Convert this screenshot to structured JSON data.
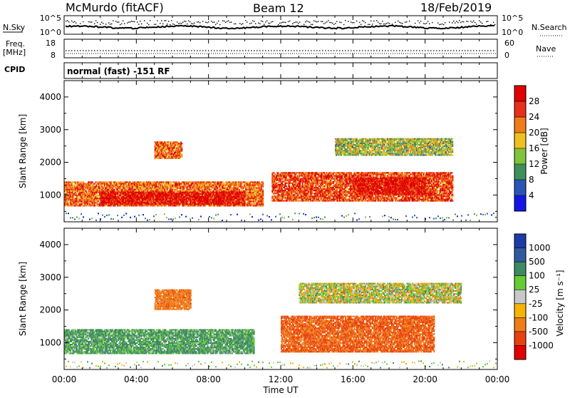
{
  "header": {
    "station": "McMurdo (fitACF)",
    "beam": "Beam 12",
    "date": "18/Feb/2019"
  },
  "noise_panel": {
    "left_label": "N.Sky",
    "right_label": "N.Search",
    "left_ticks": [
      "10^5",
      "10^0"
    ],
    "right_ticks": [
      "10^5",
      "10^0"
    ]
  },
  "freq_panel": {
    "left_label_line1": "Freq.",
    "left_label_line2": "[MHz]",
    "left_ticks": [
      "18",
      "8"
    ],
    "right_label": "Nave",
    "right_ticks": [
      "60",
      "0"
    ]
  },
  "cpid_panel": {
    "label": "CPID",
    "value": "normal (fast) -151 RF"
  },
  "axes": {
    "xlabel": "Time UT",
    "x_ticks": [
      "00:00",
      "04:00",
      "08:00",
      "12:00",
      "16:00",
      "20:00",
      "00:00"
    ],
    "ylabel": "Slant Range [km]",
    "y_ticks": [
      "1000",
      "2000",
      "3000",
      "4000"
    ]
  },
  "power_colorbar": {
    "title": "Power [dB]",
    "ticks": [
      "4",
      "8",
      "12",
      "16",
      "20",
      "24",
      "28"
    ],
    "colors": [
      "#1515e8",
      "#2a55b8",
      "#3f8f5a",
      "#7fc43c",
      "#f0c020",
      "#f07d18",
      "#e83018",
      "#e00000"
    ]
  },
  "velocity_colorbar": {
    "title": "Velocity [m s⁻¹]",
    "ticks": [
      "1000",
      "500",
      "100",
      "25",
      "-25",
      "-100",
      "-500",
      "-1000"
    ],
    "colors": [
      "#1e3ca8",
      "#2f5aa0",
      "#3e8a62",
      "#66cc33",
      "#c8c8c8",
      "#f5b400",
      "#f07d18",
      "#e84010",
      "#e00000"
    ]
  },
  "chart_data": [
    {
      "type": "heatmap",
      "title": "Power",
      "xlabel": "Time UT",
      "ylabel": "Slant Range [km]",
      "x_range": [
        "00:00",
        "24:00"
      ],
      "ylim": [
        180,
        4500
      ],
      "colorbar_label": "Power [dB]",
      "colorbar_range": [
        0,
        30
      ],
      "bands": [
        {
          "t0": 0.0,
          "t1": 11.0,
          "r0": 650,
          "r1": 1400,
          "value": 22
        },
        {
          "t0": 2.0,
          "t1": 10.0,
          "r0": 700,
          "r1": 1100,
          "value": 28
        },
        {
          "t0": 5.0,
          "t1": 6.5,
          "r0": 2100,
          "r1": 2600,
          "value": 22
        },
        {
          "t0": 11.5,
          "t1": 21.5,
          "r0": 800,
          "r1": 1700,
          "value": 24
        },
        {
          "t0": 16.0,
          "t1": 20.0,
          "r0": 1000,
          "r1": 1500,
          "value": 28
        },
        {
          "t0": 15.0,
          "t1": 21.5,
          "r0": 2200,
          "r1": 2700,
          "value": 14
        }
      ]
    },
    {
      "type": "heatmap",
      "title": "Velocity",
      "xlabel": "Time UT",
      "ylabel": "Slant Range [km]",
      "x_range": [
        "00:00",
        "24:00"
      ],
      "ylim": [
        180,
        4500
      ],
      "colorbar_label": "Velocity [m s⁻¹]",
      "colorbar_range": [
        -1000,
        1000
      ],
      "bands": [
        {
          "t0": 0.0,
          "t1": 10.5,
          "r0": 650,
          "r1": 1400,
          "value": 150
        },
        {
          "t0": 5.0,
          "t1": 7.0,
          "r0": 2000,
          "r1": 2600,
          "value": -400
        },
        {
          "t0": 12.0,
          "t1": 20.5,
          "r0": 700,
          "r1": 1800,
          "value": -500
        },
        {
          "t0": 13.0,
          "t1": 22.0,
          "r0": 2200,
          "r1": 2800,
          "value": 0
        }
      ]
    }
  ]
}
